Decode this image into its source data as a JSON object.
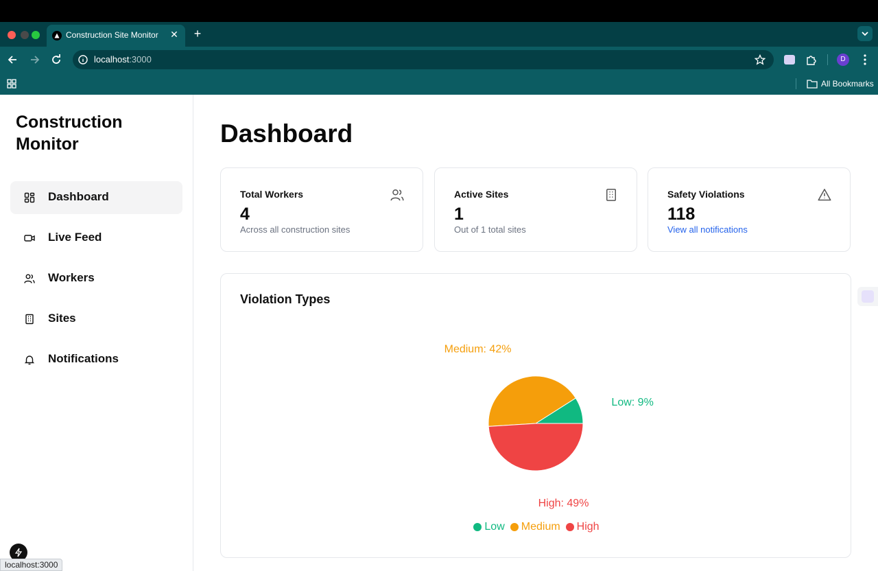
{
  "browser": {
    "tab_title": "Construction Site Monitor",
    "url_host": "localhost",
    "url_port": ":3000",
    "avatar_letter": "D",
    "bookmarks_label": "All Bookmarks",
    "status_url": "localhost:3000"
  },
  "sidebar": {
    "brand": "Construction Monitor",
    "items": [
      {
        "label": "Dashboard",
        "icon": "dashboard-icon",
        "active": true
      },
      {
        "label": "Live Feed",
        "icon": "video-icon",
        "active": false
      },
      {
        "label": "Workers",
        "icon": "users-icon",
        "active": false
      },
      {
        "label": "Sites",
        "icon": "building-icon",
        "active": false
      },
      {
        "label": "Notifications",
        "icon": "bell-icon",
        "active": false
      }
    ]
  },
  "main": {
    "title": "Dashboard",
    "cards": [
      {
        "title": "Total Workers",
        "value": "4",
        "sub": "Across all construction sites",
        "icon": "users-icon"
      },
      {
        "title": "Active Sites",
        "value": "1",
        "sub": "Out of 1 total sites",
        "icon": "building-icon"
      },
      {
        "title": "Safety Violations",
        "value": "118",
        "link": "View all notifications",
        "icon": "warning-icon"
      }
    ],
    "chart_card_title": "Violation Types"
  },
  "chart_data": {
    "type": "pie",
    "title": "Violation Types",
    "categories": [
      "Low",
      "Medium",
      "High"
    ],
    "values": [
      9,
      42,
      49
    ],
    "labels": [
      "Low: 9%",
      "Medium: 42%",
      "High: 49%"
    ],
    "colors": [
      "#10b981",
      "#f59e0b",
      "#ef4444"
    ],
    "legend": "bottom"
  },
  "colors": {
    "chrome_dark": "#043f45",
    "chrome": "#0c5c62",
    "link": "#2563eb"
  }
}
